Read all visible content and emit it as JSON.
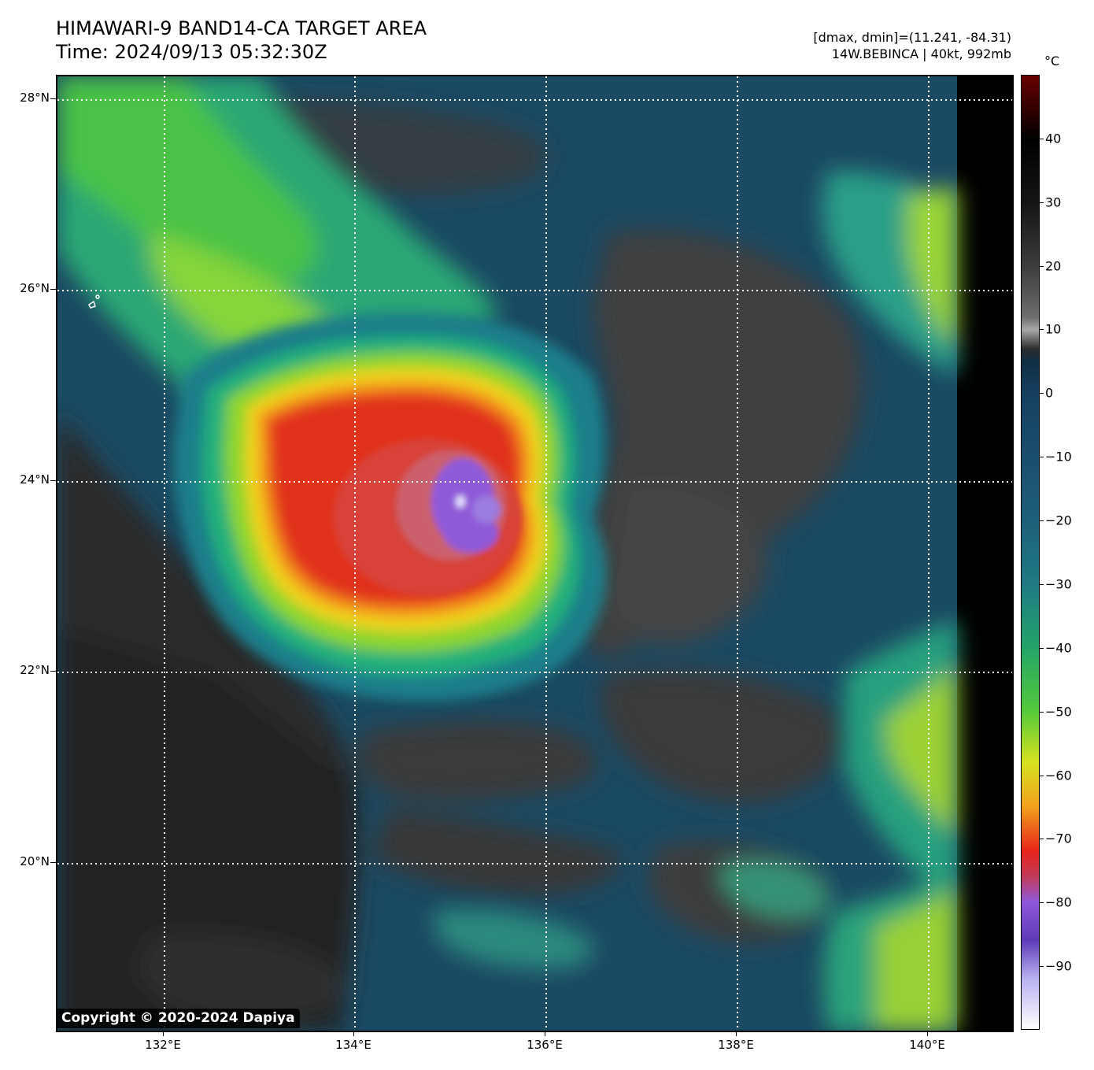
{
  "header": {
    "title_line1": "HIMAWARI-9 BAND14-CA TARGET AREA",
    "title_line2": "Time: 2024/09/13 05:32:30Z",
    "info_line1": "[dmax, dmin]=(11.241, -84.31)",
    "info_line2": "14W.BEBINCA | 40kt, 992mb"
  },
  "map": {
    "lat_labels": [
      "28°N",
      "26°N",
      "24°N",
      "22°N",
      "20°N"
    ],
    "lon_labels": [
      "132°E",
      "134°E",
      "136°E",
      "138°E",
      "140°E"
    ],
    "copyright": "Copyright © 2020-2024 Dapiya"
  },
  "colorbar": {
    "unit": "°C",
    "labels": [
      "40",
      "30",
      "20",
      "10",
      "0",
      "−10",
      "−20",
      "−30",
      "−40",
      "−50",
      "−60",
      "−70",
      "−80",
      "−90"
    ],
    "vmax": 50,
    "vmin": -100
  }
}
